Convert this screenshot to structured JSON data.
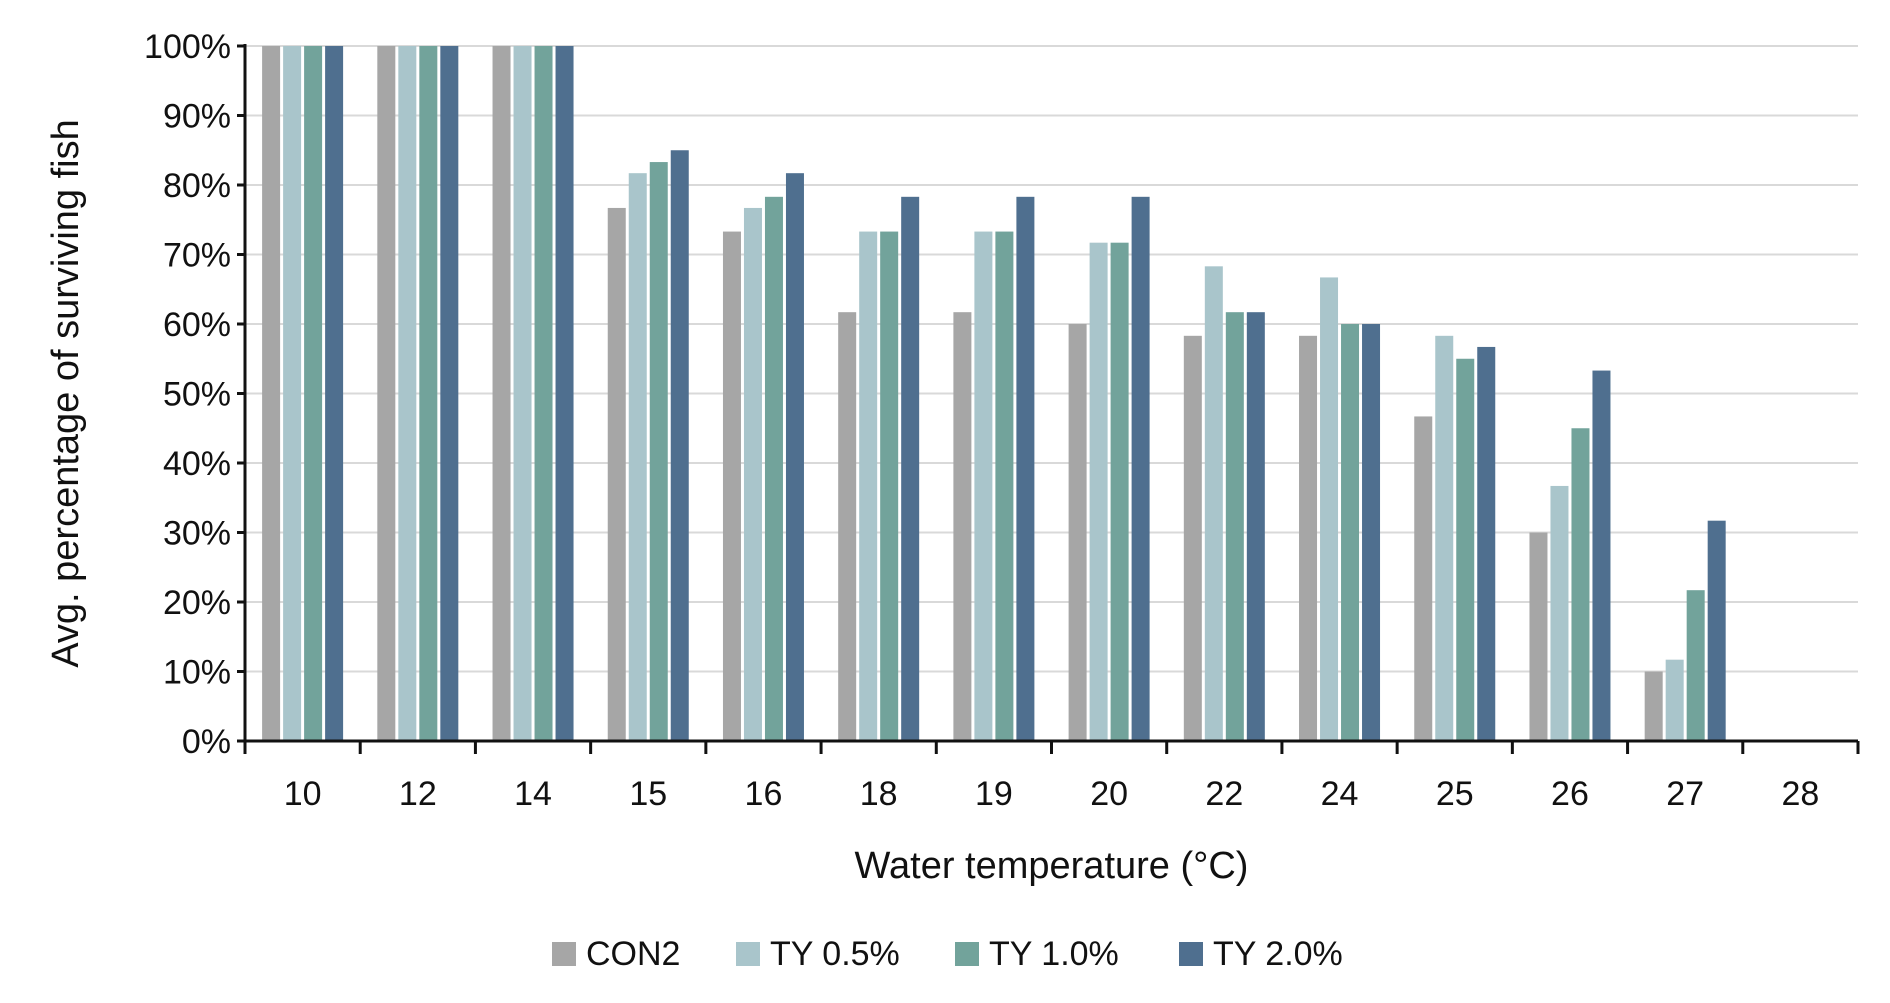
{
  "chart_data": {
    "type": "bar",
    "title": "",
    "xlabel": "Water temperature (°C)",
    "ylabel": "Avg. percentage of surviving fish",
    "ylim": [
      0,
      100
    ],
    "yticks": [
      "0%",
      "10%",
      "20%",
      "30%",
      "40%",
      "50%",
      "60%",
      "70%",
      "80%",
      "90%",
      "100%"
    ],
    "categories": [
      "10",
      "12",
      "14",
      "15",
      "16",
      "18",
      "19",
      "20",
      "22",
      "24",
      "25",
      "26",
      "27",
      "28"
    ],
    "grid": "horizontal",
    "legend_position": "bottom",
    "series": [
      {
        "name": "CON2",
        "color": "#a6a6a6",
        "values": [
          100,
          100,
          100,
          76.7,
          73.3,
          61.7,
          61.7,
          60,
          58.3,
          58.3,
          46.7,
          30,
          10,
          0
        ]
      },
      {
        "name": "TY 0.5%",
        "color": "#a9c5cb",
        "values": [
          100,
          100,
          100,
          81.7,
          76.7,
          73.3,
          73.3,
          71.7,
          68.3,
          66.7,
          58.3,
          36.7,
          11.7,
          0
        ]
      },
      {
        "name": "TY 1.0%",
        "color": "#72a39b",
        "values": [
          100,
          100,
          100,
          83.3,
          78.3,
          73.3,
          73.3,
          71.7,
          61.7,
          60,
          55,
          45,
          21.7,
          0
        ]
      },
      {
        "name": "TY 2.0%",
        "color": "#4f6f8f",
        "values": [
          100,
          100,
          100,
          85,
          81.7,
          78.3,
          78.3,
          78.3,
          61.7,
          60,
          56.7,
          53.3,
          31.7,
          0
        ]
      }
    ]
  }
}
